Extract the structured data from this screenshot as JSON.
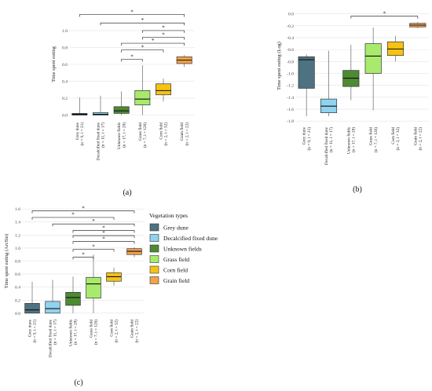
{
  "chart_data": [
    {
      "panel_label": "(a)",
      "type": "box",
      "ylabel": "Time spent eating",
      "ylim": [
        -0.05,
        1.25
      ],
      "yticks": [
        "0.0",
        "0.2",
        "0.4",
        "0.6",
        "0.8",
        "1.0"
      ],
      "categories": [
        "Grey dune",
        "Decalcified fixed dune",
        "Unknown fields",
        "Grass field",
        "Corn field",
        "Grain field"
      ],
      "sample_sizes": [
        "(n = 9, i = 21)",
        "(n = 11, i = 17)",
        "(n = 17, i = 28)",
        "(n = 7, i = 126)",
        "(n = 2, i = 32)",
        "(n = 2, i = 22)"
      ],
      "boxes": [
        {
          "min": 0.0,
          "q1": 0.0,
          "median": 0.01,
          "q3": 0.02,
          "max": 0.21
        },
        {
          "min": 0.0,
          "q1": 0.0,
          "median": 0.01,
          "q3": 0.03,
          "max": 0.23
        },
        {
          "min": 0.0,
          "q1": 0.02,
          "median": 0.05,
          "q3": 0.1,
          "max": 0.28
        },
        {
          "min": 0.0,
          "q1": 0.12,
          "median": 0.19,
          "q3": 0.29,
          "max": 0.59
        },
        {
          "min": 0.16,
          "q1": 0.24,
          "median": 0.29,
          "q3": 0.37,
          "max": 0.43
        },
        {
          "min": 0.57,
          "q1": 0.61,
          "median": 0.65,
          "q3": 0.69,
          "max": 0.71
        }
      ],
      "significance": [
        {
          "from": 0,
          "to": 5,
          "y": 1.19,
          "label": "*"
        },
        {
          "from": 1,
          "to": 5,
          "y": 1.09,
          "label": "*"
        },
        {
          "from": 3,
          "to": 5,
          "y": 1.0,
          "label": "*"
        },
        {
          "from": 3,
          "to": 5,
          "y": 0.92,
          "label": "*"
        },
        {
          "from": 2,
          "to": 5,
          "y": 0.85,
          "label": "*"
        },
        {
          "from": 2,
          "to": 4,
          "y": 0.77,
          "label": "*"
        },
        {
          "from": 2,
          "to": 3,
          "y": 0.66,
          "label": "*"
        }
      ]
    },
    {
      "panel_label": "(b)",
      "type": "box",
      "ylabel": "Time spent eating (Log)",
      "ylim": [
        -1.85,
        0.1
      ],
      "yticks": [
        "-1.8",
        "-1.6",
        "-1.4",
        "-1.2",
        "-1.0",
        "-0.8",
        "-0.6",
        "-0.4",
        "-0.2",
        "0.0"
      ],
      "categories": [
        "Grey dune",
        "Decalcified fixed dune",
        "Unknown fields",
        "Grass field",
        "Corn field",
        "Grain field"
      ],
      "sample_sizes": [
        "(n = 9, i = 21)",
        "(n = 11, i = 17)",
        "(n = 17, i = 28)",
        "(n = 7, i = 126)",
        "(n = 2, i = 32)",
        "(n = 2, i = 22)"
      ],
      "boxes": [
        {
          "min": -1.72,
          "q1": -1.25,
          "median": -0.77,
          "q3": -0.72,
          "max": -0.68
        },
        {
          "min": -1.72,
          "q1": -1.66,
          "median": -1.55,
          "q3": -1.43,
          "max": -0.62
        },
        {
          "min": -1.45,
          "q1": -1.22,
          "median": -1.08,
          "q3": -0.95,
          "max": -0.52
        },
        {
          "min": -1.62,
          "q1": -1.0,
          "median": -0.71,
          "q3": -0.5,
          "max": -0.23
        },
        {
          "min": -0.8,
          "q1": -0.7,
          "median": -0.59,
          "q3": -0.47,
          "max": -0.37
        },
        {
          "min": -0.24,
          "q1": -0.22,
          "median": -0.19,
          "q3": -0.16,
          "max": -0.14
        }
      ],
      "significance": [
        {
          "from": 2,
          "to": 5,
          "y": -0.04,
          "label": "*"
        }
      ]
    },
    {
      "panel_label": "(c)",
      "type": "box",
      "ylabel": "Time spent eating (ArcSin)",
      "ylim": [
        -0.05,
        1.65
      ],
      "yticks": [
        "0.0",
        "0.2",
        "0.4",
        "0.6",
        "0.8",
        "1.0",
        "1.2",
        "1.4",
        "1.6"
      ],
      "categories": [
        "Grey dune",
        "Decalcified fixed dune",
        "Unknown fields",
        "Grass field",
        "Corn field",
        "Grain field"
      ],
      "sample_sizes": [
        "(n = 9, i = 21)",
        "(n = 11, i = 17)",
        "(n = 17, i = 28)",
        "(n = 7, i = 126)",
        "(n = 2, i = 32)",
        "(n = 2, i = 22)"
      ],
      "boxes": [
        {
          "min": 0.0,
          "q1": 0.0,
          "median": 0.05,
          "q3": 0.15,
          "max": 0.48
        },
        {
          "min": 0.0,
          "q1": 0.0,
          "median": 0.07,
          "q3": 0.18,
          "max": 0.51
        },
        {
          "min": 0.0,
          "q1": 0.12,
          "median": 0.24,
          "q3": 0.32,
          "max": 0.56
        },
        {
          "min": 0.0,
          "q1": 0.23,
          "median": 0.45,
          "q3": 0.55,
          "max": 0.9
        },
        {
          "min": 0.42,
          "q1": 0.49,
          "median": 0.56,
          "q3": 0.62,
          "max": 0.7
        },
        {
          "min": 0.86,
          "q1": 0.9,
          "median": 0.95,
          "q3": 0.99,
          "max": 1.01
        }
      ],
      "significance": [
        {
          "from": 0,
          "to": 5,
          "y": 1.57,
          "label": "*"
        },
        {
          "from": 0,
          "to": 4,
          "y": 1.47,
          "label": "*"
        },
        {
          "from": 1,
          "to": 5,
          "y": 1.37,
          "label": "*"
        },
        {
          "from": 2,
          "to": 5,
          "y": 1.27,
          "label": "*"
        },
        {
          "from": 2,
          "to": 5,
          "y": 1.19,
          "label": "*"
        },
        {
          "from": 2,
          "to": 5,
          "y": 1.1,
          "label": "*"
        },
        {
          "from": 2,
          "to": 4,
          "y": 0.98,
          "label": "*"
        },
        {
          "from": 2,
          "to": 3,
          "y": 0.86,
          "label": "*"
        }
      ]
    }
  ],
  "legend": {
    "title": "Vegetation types",
    "items": [
      {
        "label": "Grey dune",
        "color": "#4e7282"
      },
      {
        "label": "Decalcified fixed dune",
        "color": "#8fd3ef"
      },
      {
        "label": "Unknown fields",
        "color": "#4d8a33"
      },
      {
        "label": "Grass field",
        "color": "#a8ea6c"
      },
      {
        "label": "Corn field",
        "color": "#f6c314"
      },
      {
        "label": "Grain field",
        "color": "#f4a24a"
      }
    ]
  },
  "colors": [
    "#4e7282",
    "#8fd3ef",
    "#4d8a33",
    "#a8ea6c",
    "#f6c314",
    "#f4a24a"
  ]
}
